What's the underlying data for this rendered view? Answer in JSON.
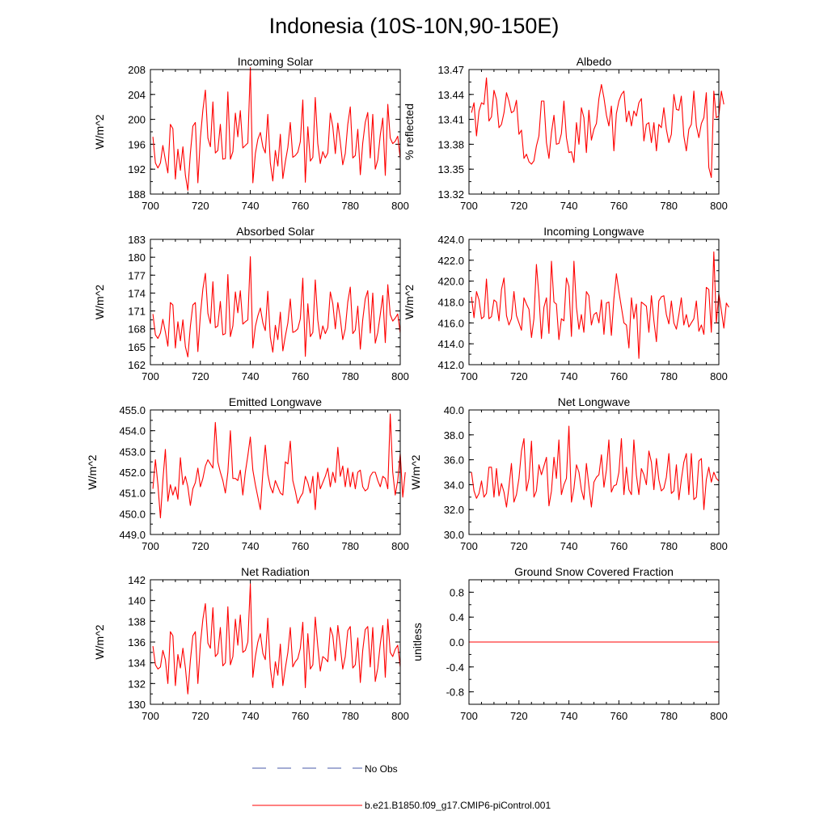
{
  "page_title": "Indonesia (10S-10N,90-150E)",
  "colors": {
    "model_line": "#ff0000",
    "obs_line": "#4a5aa8",
    "axis": "#000000"
  },
  "legend": {
    "obs_label": "No Obs",
    "model_label": "b.e21.B1850.f09_g17.CMIP6-piControl.001"
  },
  "chart_data": [
    {
      "type": "line",
      "title": "Incoming Solar",
      "ylabel": "W/m^2",
      "xlabel": "",
      "xlim": [
        700,
        800
      ],
      "ylim": [
        188,
        208
      ],
      "xticks": [
        "700",
        "720",
        "740",
        "760",
        "780",
        "800"
      ],
      "yticks": [
        "188",
        "192",
        "196",
        "200",
        "204",
        "208"
      ],
      "series": [
        {
          "name": "b.e21.B1850.f09_g17.CMIP6-piControl.001",
          "x0": 701,
          "dx": 1,
          "values": [
            197.2,
            193.0,
            192.2,
            193.0,
            195.8,
            193.5,
            191.4,
            199.2,
            198.5,
            190.4,
            195.2,
            191.8,
            195.6,
            191.0,
            188.6,
            194.5,
            198.9,
            199.5,
            189.8,
            197.0,
            201.5,
            204.7,
            197.0,
            195.6,
            202.8,
            194.6,
            195.0,
            199.2,
            193.6,
            193.7,
            204.4,
            193.6,
            194.8,
            201.0,
            197.2,
            201.4,
            195.4,
            195.8,
            196.2,
            208.3,
            189.8,
            194.5,
            196.8,
            197.9,
            195.6,
            194.6,
            200.8,
            193.0,
            190.1,
            195.0,
            192.5,
            197.6,
            190.5,
            193.2,
            195.5,
            199.5,
            193.9,
            194.2,
            194.7,
            196.4,
            203.1,
            189.9,
            198.8,
            193.3,
            193.9,
            203.5,
            196.1,
            192.9,
            194.8,
            193.8,
            194.6,
            201.0,
            198.8,
            194.5,
            199.4,
            196.4,
            192.7,
            194.5,
            199.2,
            202.0,
            193.8,
            194.2,
            198.4,
            191.1,
            196.2,
            199.5,
            201.1,
            193.8,
            200.8,
            192.0,
            193.5,
            197.5,
            200.2,
            191.0,
            202.4,
            197.0,
            196.1,
            196.5,
            197.3,
            193.7
          ]
        }
      ]
    },
    {
      "type": "line",
      "title": "Albedo",
      "ylabel": "% reflected",
      "xlabel": "",
      "xlim": [
        700,
        800
      ],
      "ylim": [
        13.32,
        13.47
      ],
      "xticks": [
        "700",
        "720",
        "740",
        "760",
        "780",
        "800"
      ],
      "yticks": [
        "13.32",
        "13.35",
        "13.38",
        "13.41",
        "13.44",
        "13.47"
      ],
      "series": [
        {
          "name": "b.e21.B1850.f09_g17.CMIP6-piControl.001",
          "x0": 701,
          "dx": 1,
          "values": [
            13.418,
            13.43,
            13.39,
            13.42,
            13.43,
            13.428,
            13.46,
            13.408,
            13.413,
            13.445,
            13.434,
            13.4,
            13.404,
            13.418,
            13.442,
            13.432,
            13.418,
            13.42,
            13.433,
            13.392,
            13.397,
            13.363,
            13.368,
            13.359,
            13.356,
            13.36,
            13.378,
            13.39,
            13.432,
            13.432,
            13.382,
            13.363,
            13.394,
            13.415,
            13.38,
            13.381,
            13.393,
            13.432,
            13.388,
            13.37,
            13.371,
            13.358,
            13.406,
            13.38,
            13.424,
            13.412,
            13.37,
            13.421,
            13.385,
            13.398,
            13.405,
            13.435,
            13.452,
            13.436,
            13.415,
            13.402,
            13.426,
            13.372,
            13.417,
            13.432,
            13.44,
            13.444,
            13.407,
            13.42,
            13.402,
            13.42,
            13.414,
            13.43,
            13.435,
            13.384,
            13.404,
            13.406,
            13.382,
            13.406,
            13.372,
            13.404,
            13.4,
            13.424,
            13.398,
            13.382,
            13.392,
            13.44,
            13.422,
            13.421,
            13.438,
            13.39,
            13.372,
            13.398,
            13.404,
            13.444,
            13.402,
            13.388,
            13.405,
            13.412,
            13.442,
            13.352,
            13.34,
            13.444,
            13.412,
            13.414,
            13.444,
            13.428
          ]
        }
      ]
    },
    {
      "type": "line",
      "title": "Absorbed Solar",
      "ylabel": "W/m^2",
      "xlabel": "",
      "xlim": [
        700,
        800
      ],
      "ylim": [
        162,
        183
      ],
      "xticks": [
        "700",
        "720",
        "740",
        "760",
        "780",
        "800"
      ],
      "yticks": [
        "162",
        "165",
        "168",
        "171",
        "174",
        "177",
        "180",
        "183"
      ],
      "series": [
        {
          "name": "b.e21.B1850.f09_g17.CMIP6-piControl.001",
          "x0": 701,
          "dx": 1,
          "values": [
            170.5,
            167.0,
            166.4,
            167.3,
            169.6,
            167.5,
            165.1,
            172.4,
            172.0,
            164.8,
            169.2,
            166.0,
            169.5,
            165.0,
            163.3,
            168.4,
            172.0,
            172.4,
            164.2,
            170.3,
            174.7,
            177.3,
            170.6,
            168.9,
            175.9,
            168.2,
            168.5,
            172.6,
            167.0,
            167.2,
            177.1,
            166.7,
            168.5,
            174.2,
            170.7,
            174.4,
            168.8,
            169.2,
            169.5,
            180.1,
            164.8,
            168.4,
            170.2,
            171.5,
            169.0,
            167.7,
            174.3,
            166.6,
            164.1,
            168.6,
            166.2,
            170.8,
            164.3,
            166.8,
            169.0,
            173.0,
            167.4,
            167.6,
            168.0,
            169.7,
            176.5,
            163.4,
            172.2,
            166.7,
            167.4,
            176.2,
            169.5,
            166.3,
            168.5,
            167.2,
            168.2,
            174.2,
            172.2,
            168.0,
            172.4,
            169.8,
            166.2,
            168.0,
            172.5,
            175.0,
            167.2,
            167.8,
            171.8,
            164.6,
            169.5,
            173.0,
            174.4,
            167.3,
            174.0,
            165.6,
            167.4,
            170.4,
            173.6,
            165.7,
            175.4,
            170.4,
            169.3,
            169.8,
            170.5,
            167.3
          ]
        }
      ]
    },
    {
      "type": "line",
      "title": "Incoming Longwave",
      "ylabel": "W/m^2",
      "xlabel": "",
      "xlim": [
        700,
        800
      ],
      "ylim": [
        412,
        424
      ],
      "xticks": [
        "700",
        "720",
        "740",
        "760",
        "780",
        "800"
      ],
      "yticks": [
        "412.0",
        "414.0",
        "416.0",
        "418.0",
        "420.0",
        "422.0",
        "424.0"
      ],
      "series": [
        {
          "name": "b.e21.B1850.f09_g17.CMIP6-piControl.001",
          "x0": 701,
          "dx": 1,
          "values": [
            418.5,
            416.5,
            419.0,
            418.2,
            416.4,
            416.6,
            420.2,
            416.4,
            416.6,
            418.2,
            418.0,
            416.2,
            419.2,
            420.3,
            416.7,
            415.8,
            416.4,
            419.0,
            416.7,
            416.0,
            415.3,
            418.4,
            417.8,
            417.3,
            414.6,
            416.4,
            421.6,
            418.6,
            414.5,
            417.5,
            418.4,
            415.0,
            421.9,
            418.0,
            417.8,
            414.4,
            416.4,
            416.2,
            420.3,
            419.5,
            414.7,
            421.9,
            417.5,
            415.4,
            416.8,
            415.1,
            419.0,
            418.6,
            415.8,
            416.8,
            417.0,
            416.0,
            418.2,
            414.9,
            417.9,
            418.0,
            414.8,
            418.3,
            420.7,
            419.0,
            417.5,
            416.0,
            415.8,
            413.6,
            418.4,
            416.4,
            417.8,
            412.6,
            418.0,
            417.8,
            417.6,
            415.1,
            418.6,
            416.2,
            414.2,
            418.1,
            418.5,
            418.6,
            416.8,
            415.9,
            418.1,
            416.0,
            415.4,
            416.8,
            418.4,
            415.8,
            416.8,
            415.6,
            416.0,
            416.4,
            418.1,
            415.2,
            415.8,
            414.9,
            419.4,
            419.2,
            415.1,
            422.8,
            416.0,
            418.8,
            417.2,
            415.5,
            417.9,
            417.5
          ]
        }
      ]
    },
    {
      "type": "line",
      "title": "Emitted Longwave",
      "ylabel": "W/m^2",
      "xlabel": "",
      "xlim": [
        700,
        800
      ],
      "ylim": [
        449,
        455
      ],
      "xticks": [
        "700",
        "720",
        "740",
        "760",
        "780",
        "800"
      ],
      "yticks": [
        "449.0",
        "450.0",
        "451.0",
        "452.0",
        "453.0",
        "454.0",
        "455.0"
      ],
      "series": [
        {
          "name": "b.e21.B1850.f09_g17.CMIP6-piControl.001",
          "x0": 701,
          "dx": 1,
          "values": [
            451.2,
            452.6,
            451.4,
            449.8,
            451.6,
            453.1,
            450.6,
            451.4,
            450.9,
            451.3,
            450.7,
            452.7,
            451.4,
            451.8,
            451.3,
            450.4,
            451.2,
            451.5,
            452.2,
            451.3,
            451.7,
            452.3,
            452.6,
            452.4,
            452.2,
            454.4,
            452.5,
            452.0,
            451.6,
            451.0,
            452.0,
            454.0,
            451.7,
            451.7,
            451.6,
            452.1,
            450.9,
            452.0,
            452.8,
            453.7,
            452.1,
            451.4,
            450.8,
            450.2,
            452.0,
            453.3,
            451.9,
            451.3,
            451.0,
            451.6,
            451.3,
            451.0,
            450.9,
            452.5,
            452.4,
            453.5,
            451.6,
            451.1,
            450.5,
            450.8,
            451.0,
            451.8,
            451.5,
            451.0,
            451.8,
            450.2,
            452.0,
            451.2,
            451.5,
            451.8,
            452.2,
            451.3,
            452.0,
            451.5,
            453.2,
            451.8,
            452.3,
            451.3,
            452.2,
            451.3,
            452.0,
            451.2,
            452.0,
            452.1,
            451.3,
            451.1,
            451.2,
            451.8,
            452.0,
            452.0,
            451.6,
            451.3,
            451.8,
            451.7,
            451.2,
            454.8,
            452.0,
            450.9,
            451.6,
            452.9,
            450.8,
            452.0
          ]
        }
      ]
    },
    {
      "type": "line",
      "title": "Net Longwave",
      "ylabel": "W/m^2",
      "xlabel": "",
      "xlim": [
        700,
        800
      ],
      "ylim": [
        30,
        40
      ],
      "xticks": [
        "700",
        "720",
        "740",
        "760",
        "780",
        "800"
      ],
      "yticks": [
        "30.0",
        "32.0",
        "34.0",
        "36.0",
        "38.0",
        "40.0"
      ],
      "series": [
        {
          "name": "b.e21.B1850.f09_g17.CMIP6-piControl.001",
          "x0": 701,
          "dx": 1,
          "values": [
            35.0,
            33.5,
            32.9,
            33.3,
            34.3,
            33.0,
            33.3,
            35.4,
            35.4,
            33.0,
            35.3,
            33.1,
            34.1,
            33.4,
            32.2,
            33.8,
            35.7,
            32.6,
            33.2,
            34.5,
            36.7,
            37.7,
            33.5,
            34.5,
            37.5,
            33.0,
            33.5,
            35.6,
            34.8,
            35.5,
            36.2,
            32.3,
            33.5,
            36.2,
            34.5,
            37.6,
            33.2,
            34.0,
            34.5,
            38.7,
            32.6,
            33.7,
            35.6,
            35.0,
            33.6,
            32.8,
            35.7,
            33.9,
            32.2,
            34.2,
            34.6,
            34.8,
            36.4,
            33.8,
            35.2,
            37.6,
            33.4,
            33.9,
            34.0,
            35.0,
            37.7,
            33.2,
            35.4,
            33.6,
            33.2,
            37.6,
            34.8,
            33.2,
            35.3,
            34.8,
            34.0,
            36.7,
            35.8,
            33.6,
            36.1,
            34.4,
            33.5,
            33.7,
            34.6,
            36.5,
            33.3,
            33.5,
            35.6,
            32.8,
            34.4,
            35.8,
            36.5,
            33.2,
            36.5,
            32.8,
            33.0,
            35.9,
            36.1,
            32.0,
            34.4,
            35.4,
            34.2,
            35.0,
            34.5,
            34.3
          ]
        }
      ]
    },
    {
      "type": "line",
      "title": "Net Radiation",
      "ylabel": "W/m^2",
      "xlabel": "",
      "xlim": [
        700,
        800
      ],
      "ylim": [
        130,
        142
      ],
      "xticks": [
        "700",
        "720",
        "740",
        "760",
        "780",
        "800"
      ],
      "yticks": [
        "130",
        "132",
        "134",
        "136",
        "138",
        "140",
        "142"
      ],
      "series": [
        {
          "name": "b.e21.B1850.f09_g17.CMIP6-piControl.001",
          "x0": 701,
          "dx": 1,
          "values": [
            135.6,
            133.8,
            133.4,
            133.6,
            135.2,
            134.3,
            132.0,
            137.0,
            136.6,
            131.8,
            134.8,
            133.5,
            135.4,
            133.5,
            131.0,
            134.2,
            136.6,
            137.0,
            132.0,
            135.8,
            138.2,
            139.7,
            135.9,
            135.4,
            139.3,
            134.6,
            134.9,
            137.4,
            133.7,
            134.0,
            139.4,
            133.8,
            134.6,
            138.2,
            135.7,
            138.6,
            135.0,
            135.2,
            136.0,
            141.6,
            132.6,
            134.6,
            136.0,
            136.8,
            134.9,
            134.3,
            138.3,
            133.5,
            131.6,
            134.1,
            132.8,
            135.8,
            131.8,
            133.5,
            135.0,
            137.4,
            133.6,
            134.1,
            134.4,
            135.4,
            137.9,
            131.6,
            136.8,
            133.4,
            133.8,
            138.4,
            135.6,
            133.2,
            134.6,
            134.4,
            134.1,
            137.4,
            136.6,
            134.2,
            137.6,
            135.6,
            133.4,
            134.6,
            137.1,
            137.5,
            133.5,
            133.8,
            136.4,
            132.1,
            135.2,
            137.2,
            137.5,
            133.6,
            137.4,
            132.2,
            133.5,
            135.8,
            137.6,
            132.6,
            138.2,
            135.0,
            134.6,
            135.3,
            135.7,
            133.6
          ]
        }
      ]
    },
    {
      "type": "line",
      "title": "Ground Snow Covered Fraction",
      "ylabel": "unitless",
      "xlabel": "",
      "xlim": [
        700,
        800
      ],
      "ylim": [
        -1,
        1
      ],
      "xticks": [
        "700",
        "720",
        "740",
        "760",
        "780",
        "800"
      ],
      "yticks": [
        "-0.8",
        "-0.4",
        "0.0",
        "0.4",
        "0.8"
      ],
      "yticks_values": [
        -0.8,
        -0.4,
        0.0,
        0.4,
        0.8
      ],
      "series": [
        {
          "name": "b.e21.B1850.f09_g17.CMIP6-piControl.001",
          "x0": 700,
          "dx": 100,
          "values": [
            0.0,
            0.0
          ]
        }
      ]
    }
  ]
}
